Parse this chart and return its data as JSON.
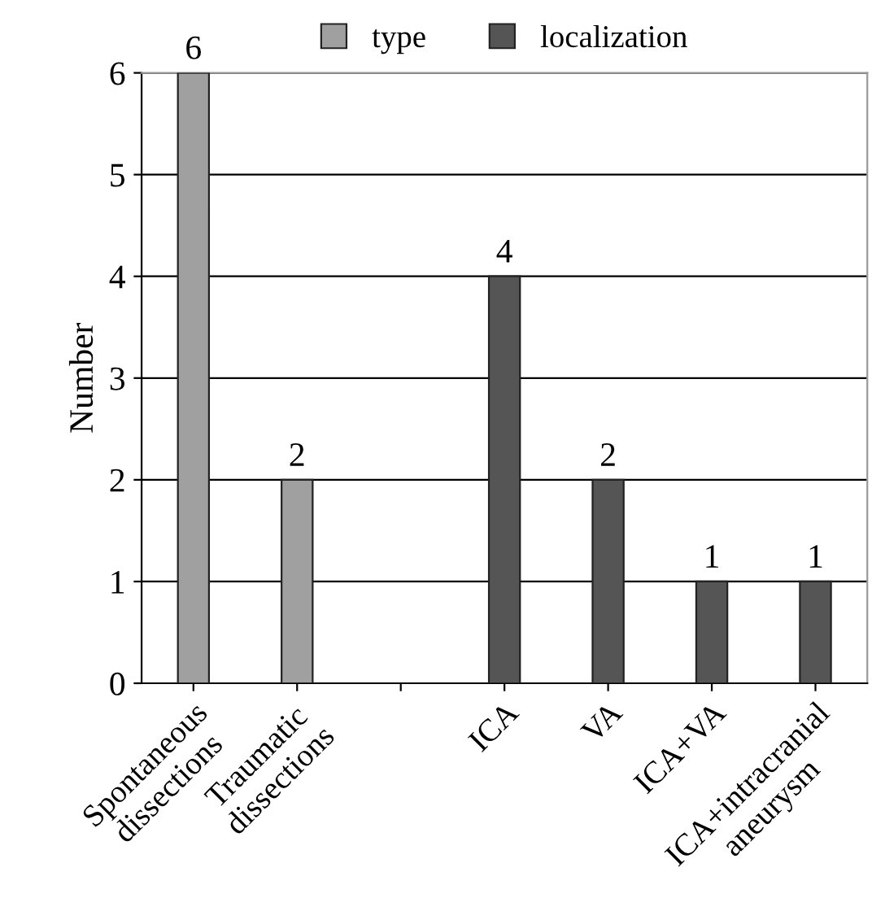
{
  "chart_data": {
    "type": "bar",
    "ylabel": "Number",
    "categories": [
      "Spontaneous\ndissections",
      "Traumatic\ndissections",
      null,
      "ICA",
      "VA",
      "ICA+VA",
      "ICA+intracranial\naneurysm"
    ],
    "series": [
      {
        "name": "type",
        "color": "#a0a0a0",
        "values": [
          6,
          2,
          null,
          null,
          null,
          null,
          null
        ]
      },
      {
        "name": "localization",
        "color": "#555555",
        "values": [
          null,
          null,
          null,
          4,
          2,
          1,
          1
        ]
      }
    ],
    "ylim": [
      0,
      6
    ],
    "yticks": [
      0,
      1,
      2,
      3,
      4,
      5,
      6
    ],
    "grid": "y",
    "legend": "top",
    "data_labels": true
  }
}
